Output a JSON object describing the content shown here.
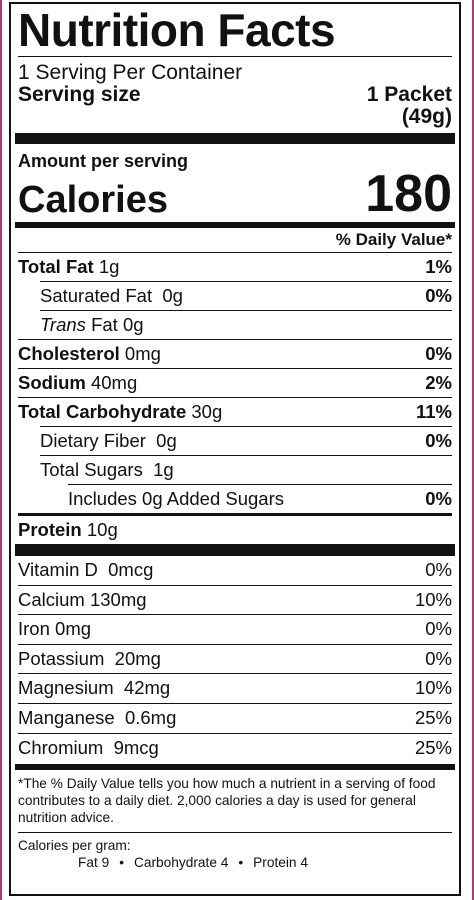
{
  "title": "Nutrition Facts",
  "servings_per_container": "1 Serving Per Container",
  "serving_size": {
    "label": "Serving size",
    "amount": "1 Packet",
    "weight": "(49g)"
  },
  "amount_per_serving": "Amount per serving",
  "calories": {
    "label": "Calories",
    "value": "180"
  },
  "daily_value_header": "% Daily Value*",
  "nutrients": [
    {
      "name": "Total Fat",
      "amount": "1g",
      "dv": "1%"
    },
    {
      "name": "Saturated Fat",
      "amount": "0g",
      "dv": "0%"
    },
    {
      "name": "Trans",
      "name_suffix": "Fat",
      "amount": "0g",
      "dv": ""
    },
    {
      "name": "Cholesterol",
      "amount": "0mg",
      "dv": "0%"
    },
    {
      "name": "Sodium",
      "amount": "40mg",
      "dv": "2%"
    },
    {
      "name": "Total Carbohydrate",
      "amount": "30g",
      "dv": "11%"
    },
    {
      "name": "Dietary Fiber",
      "amount": "0g",
      "dv": "0%"
    },
    {
      "name": "Total Sugars",
      "amount": "1g",
      "dv": ""
    },
    {
      "name": "Includes 0g Added Sugars",
      "amount": "",
      "dv": "0%"
    },
    {
      "name": "Protein",
      "amount": "10g",
      "dv": ""
    }
  ],
  "vitamins": [
    {
      "name": "Vitamin D",
      "amount": "0mcg",
      "dv": "0%"
    },
    {
      "name": "Calcium",
      "amount": "130mg",
      "dv": "10%"
    },
    {
      "name": "Iron",
      "amount": "0mg",
      "dv": "0%"
    },
    {
      "name": "Potassium",
      "amount": "20mg",
      "dv": "0%"
    },
    {
      "name": "Magnesium",
      "amount": "42mg",
      "dv": "10%"
    },
    {
      "name": "Manganese",
      "amount": "0.6mg",
      "dv": "25%"
    },
    {
      "name": "Chromium",
      "amount": "9mcg",
      "dv": "25%"
    }
  ],
  "footnote": "*The % Daily Value tells you how much a nutrient in a serving of food contributes to a daily diet. 2,000 calories a day is used for general nutrition advice.",
  "calories_per_gram": {
    "label": "Calories per gram:",
    "fat": "Fat 9",
    "sep": "•",
    "carbohydrate": "Carbohydrate 4",
    "protein": "Protein 4"
  },
  "colors": {
    "ink": "#111111",
    "edge": "#b03a78"
  }
}
